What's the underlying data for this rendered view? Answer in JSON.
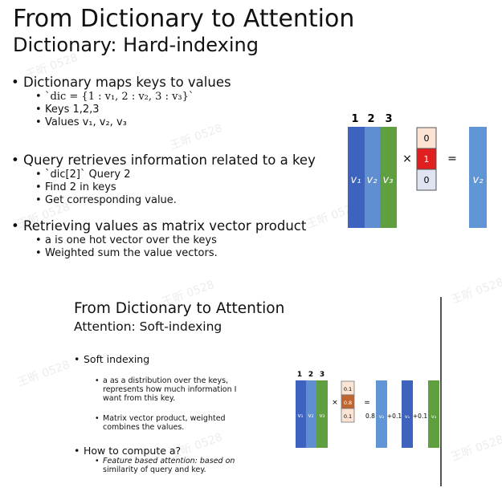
{
  "slide": {
    "title": "From Dictionary to Attention",
    "subtitle": "Dictionary: Hard-indexing",
    "bullets": [
      {
        "text": "Dictionary maps keys to values",
        "sub": [
          "`dic = {1 : v₁, 2 : v₂, 3 : v₃}`",
          "Keys  1,2,3",
          "Values  v₁, v₂, v₃"
        ]
      },
      {
        "text": "Query retrieves information related to a key",
        "sub": [
          "`dic[2]` Query 2",
          "Find 2 in keys",
          "Get corresponding value."
        ]
      },
      {
        "text": "Retrieving values as matrix vector product",
        "sub": [
          "a is one hot vector over the keys",
          "Weighted sum the value vectors."
        ]
      }
    ],
    "diagram": {
      "col_headers": [
        "1",
        "2",
        "3"
      ],
      "matrix_labels": [
        "v₁",
        "v₂",
        "v₃"
      ],
      "vector": [
        "0",
        "1",
        "0"
      ],
      "times": "×",
      "equals": "=",
      "result": "v₂",
      "colors": {
        "v1": "#3d63bf",
        "v2": "#5f8fd1",
        "v3": "#5f9f3f",
        "highlight": "#e02020",
        "vec_bg": "#fce4d4",
        "vec_bottom": "#dfe3f2",
        "result": "#6196d6"
      }
    }
  },
  "inset": {
    "title": "From Dictionary to Attention",
    "subtitle": "Attention: Soft-indexing",
    "bullets": [
      {
        "text": "Soft indexing",
        "sub": [
          "a as a distribution over the keys,",
          "represents how much information I",
          "want from this key.",
          "",
          "Matrix vector product, weighted",
          "combines the values."
        ]
      },
      {
        "text": "How to compute a?",
        "sub": [
          "Feature based attention: based on",
          "similarity of query and key."
        ]
      }
    ],
    "diagram": {
      "col_headers": [
        "1",
        "2",
        "3"
      ],
      "matrix_labels": [
        "v₁",
        "v₂",
        "v₃"
      ],
      "vector": [
        "0.1",
        "0.8",
        "0.1"
      ],
      "times": "×",
      "equals": "=",
      "terms": [
        "0.8",
        "v₂",
        "+0.1",
        "v₁",
        "+0.1",
        "v₃"
      ]
    }
  },
  "watermark": "王昕 0528"
}
